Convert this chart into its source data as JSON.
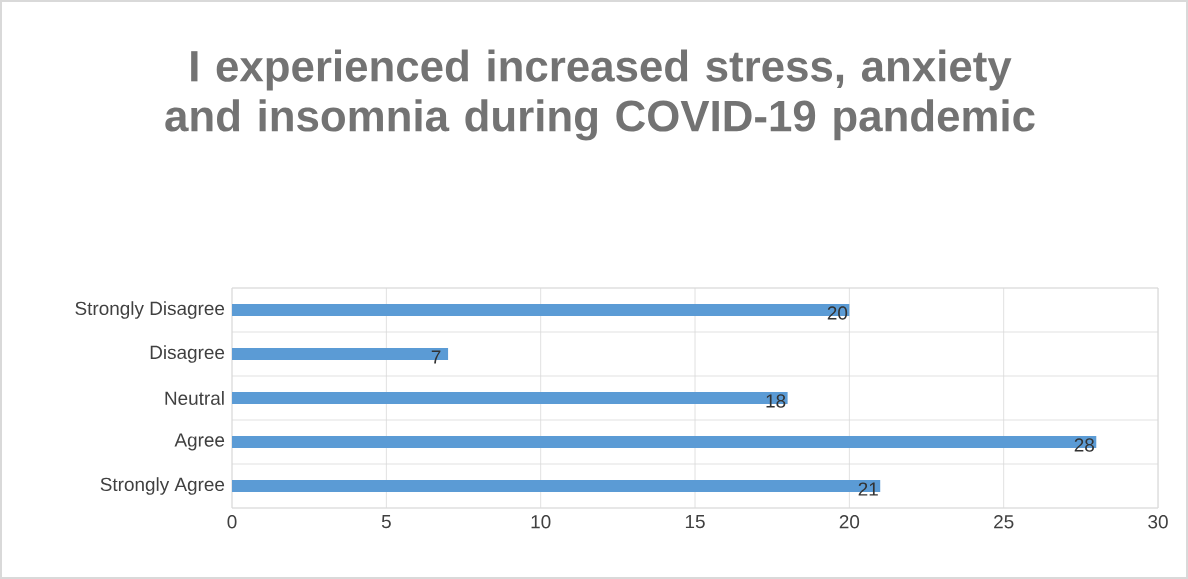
{
  "chart_data": {
    "type": "bar",
    "orientation": "horizontal",
    "title": "I experienced increased stress, anxiety and insomnia during COVID-19 pandemic",
    "categories": [
      "Strongly Disagree",
      "Disagree",
      "Neutral",
      "Agree",
      "Strongly Agree"
    ],
    "values": [
      20,
      7,
      18,
      28,
      21
    ],
    "color": "#5b9bd5",
    "xlim": [
      0,
      30
    ],
    "xticks": [
      0,
      5,
      10,
      15,
      20,
      25,
      30
    ],
    "grid": true,
    "data_labels": true
  }
}
